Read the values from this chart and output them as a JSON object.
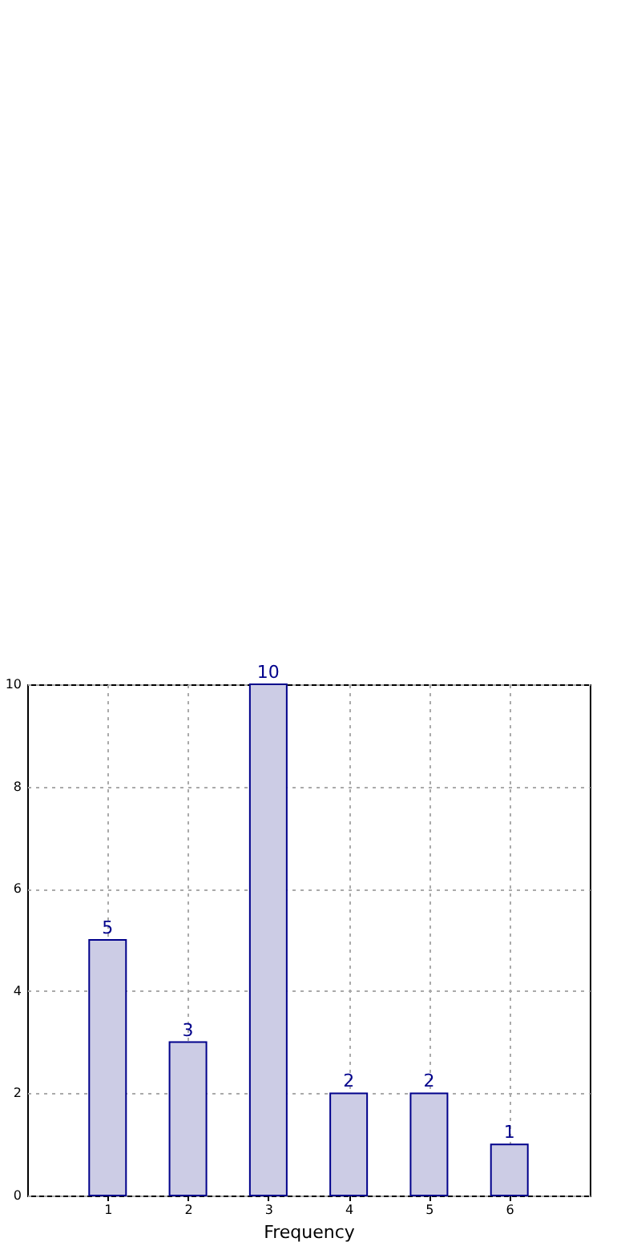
{
  "chart_data": {
    "type": "bar",
    "xlabel": "Frequency",
    "x": [
      1,
      2,
      3,
      4,
      5,
      6
    ],
    "values": [
      5,
      3,
      10,
      2,
      2,
      1
    ],
    "color": "#cccce5",
    "xlim": [
      0,
      7
    ],
    "xticks": [
      1,
      2,
      3,
      4,
      5,
      6
    ],
    "ylim": [
      0,
      10
    ],
    "yticks": [
      0,
      2,
      4,
      6,
      8,
      10
    ],
    "grid": true,
    "data_labels": true
  }
}
